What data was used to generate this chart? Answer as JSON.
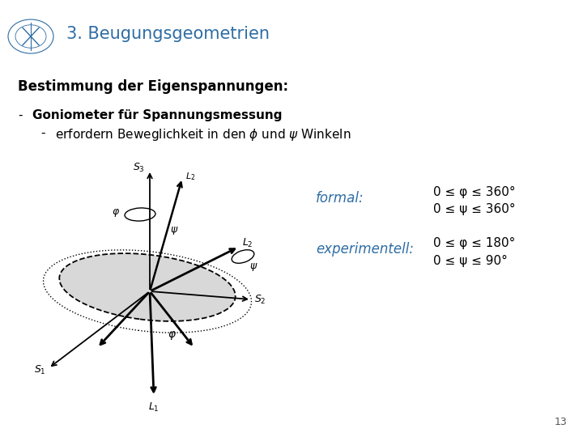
{
  "title": "3. Beugungsgeometrien",
  "title_color": "#2E6DA4",
  "title_fontsize": 15,
  "background_color": "#ffffff",
  "heading": "Bestimmung der Eigenspannungen:",
  "heading_fontsize": 12,
  "bullet1": "Goniometer für Spannungsmessung",
  "bullet2": "erfordern Beweglichkeit in den φ und ψ Winkeln",
  "formal_label": "formal:",
  "formal_line1": "0 ≤ φ ≤ 360°",
  "formal_line2": "0 ≤ ψ ≤ 360°",
  "experimentell_label": "experimentell:",
  "experimentell_line1": "0 ≤ φ ≤ 180°",
  "experimentell_line2": "0 ≤ ψ ≤ 90°",
  "text_color": "#2E6DA4",
  "body_text_color": "#000000",
  "page_number": "13",
  "logo_color": "#2E6DA4"
}
